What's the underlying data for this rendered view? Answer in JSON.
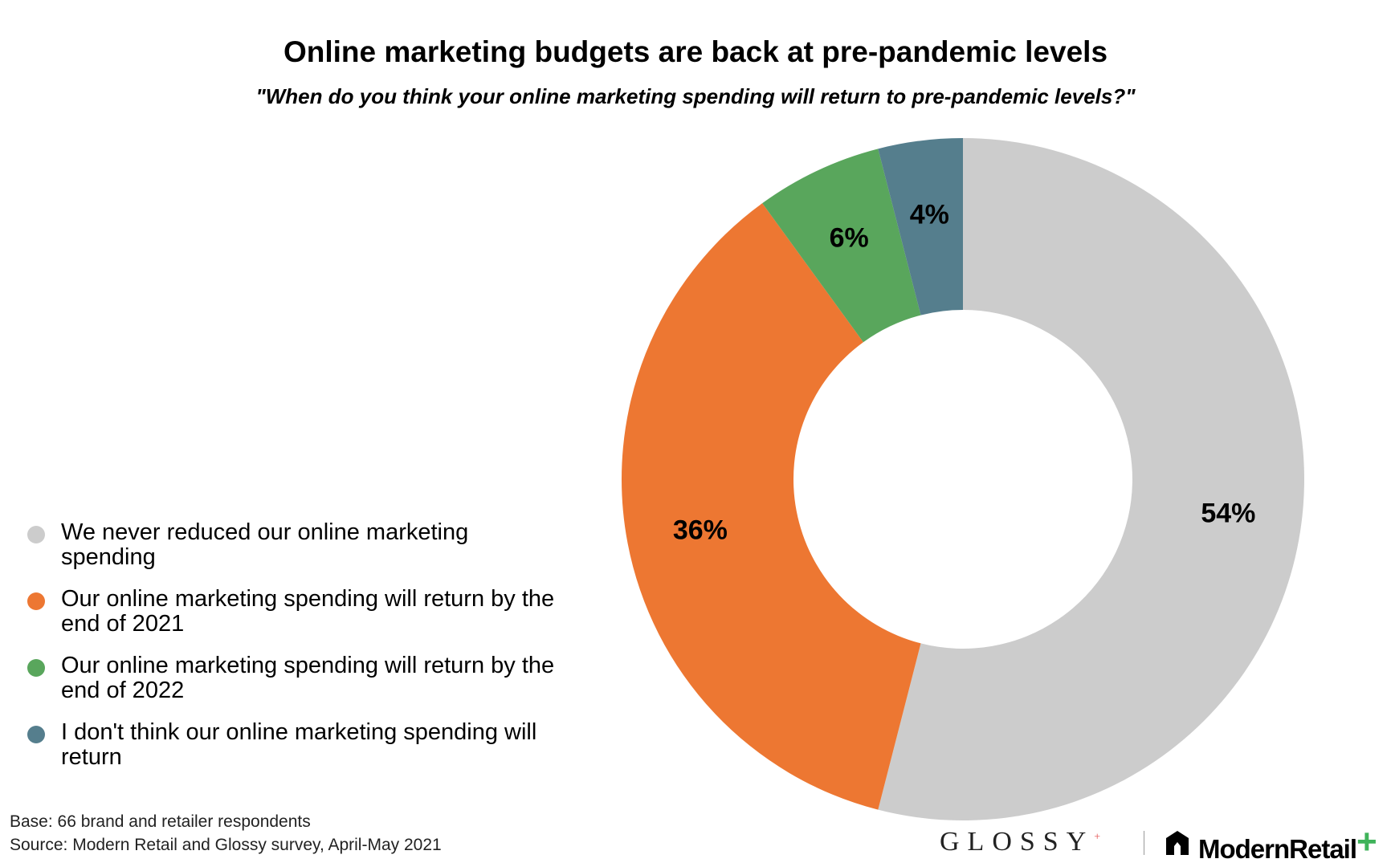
{
  "title": "Online marketing budgets are back at pre-pandemic levels",
  "subtitle": "\"When do you think your online marketing spending will return to pre-pandemic levels?\"",
  "footnotes": {
    "base": "Base: 66 brand and retailer respondents",
    "source": "Source: Modern Retail and Glossy survey, April-May 2021"
  },
  "logos": {
    "glossy": "GLOSSY",
    "glossy_mark": "+",
    "modern_retail": "ModernRetail",
    "modern_retail_mark": "+"
  },
  "chart_data": {
    "type": "pie",
    "variant": "donut",
    "start_angle_deg": 0,
    "direction": "clockwise",
    "legend_position": "left",
    "slices": [
      {
        "label": "We never reduced our online marketing spending",
        "value": 54,
        "value_label": "54%",
        "color": "#cccccc",
        "legend_lines": [
          "We never reduced our online marketing",
          "spending"
        ]
      },
      {
        "label": "Our online marketing spending will return by the end of 2021",
        "value": 36,
        "value_label": "36%",
        "color": "#ed7732",
        "legend_lines": [
          "Our online marketing spending will return by the",
          "end of 2021"
        ]
      },
      {
        "label": "Our online marketing spending will return by the end of 2022",
        "value": 6,
        "value_label": "6%",
        "color": "#59a65c",
        "legend_lines": [
          "Our online marketing spending will return by the",
          "end of 2022"
        ]
      },
      {
        "label": "I don't think our online marketing spending will return",
        "value": 4,
        "value_label": "4%",
        "color": "#557e8d",
        "legend_lines": [
          "I don't think our online marketing spending will",
          "return"
        ]
      }
    ]
  }
}
